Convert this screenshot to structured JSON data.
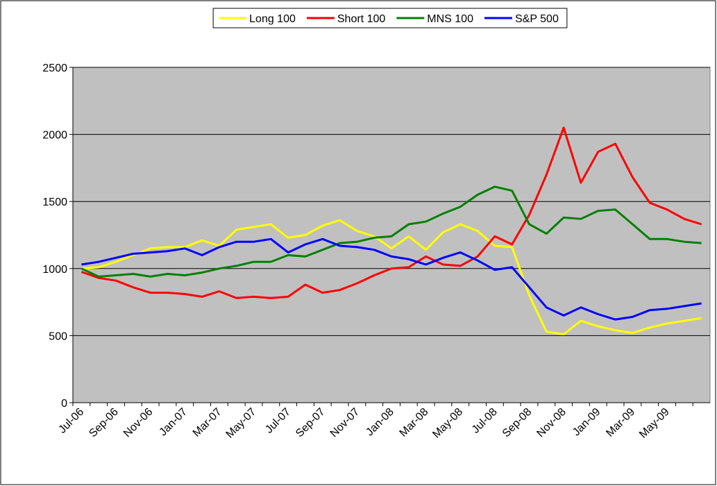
{
  "chart_data": {
    "type": "line",
    "categories": [
      "Jul-06",
      null,
      "Sep-06",
      null,
      "Nov-06",
      null,
      "Jan-07",
      null,
      "Mar-07",
      null,
      "May-07",
      null,
      "Jul-07",
      null,
      "Sep-07",
      null,
      "Nov-07",
      null,
      "Jan-08",
      null,
      "Mar-08",
      null,
      "May-08",
      null,
      "Jul-08",
      null,
      "Sep-08",
      null,
      "Nov-08",
      null,
      "Jan-09",
      null,
      "Mar-09",
      null,
      "May-09",
      null,
      null
    ],
    "series": [
      {
        "name": "Long 100",
        "color": "#ffff00",
        "values": [
          1000,
          1010,
          1050,
          1100,
          1150,
          1160,
          1160,
          1210,
          1170,
          1290,
          1310,
          1330,
          1230,
          1250,
          1320,
          1360,
          1280,
          1240,
          1150,
          1240,
          1140,
          1270,
          1330,
          1280,
          1170,
          1160,
          800,
          530,
          510,
          610,
          570,
          540,
          520,
          560,
          590,
          610,
          630
        ]
      },
      {
        "name": "Short 100",
        "color": "#ff0000",
        "values": [
          975,
          930,
          910,
          860,
          820,
          820,
          810,
          790,
          830,
          780,
          790,
          780,
          790,
          880,
          820,
          840,
          890,
          950,
          1000,
          1010,
          1090,
          1030,
          1020,
          1090,
          1240,
          1180,
          1400,
          1700,
          2050,
          1640,
          1870,
          1930,
          1680,
          1490,
          1440,
          1370,
          1330
        ]
      },
      {
        "name": "MNS 100",
        "color": "#008000",
        "values": [
          1000,
          940,
          950,
          960,
          940,
          960,
          950,
          970,
          1000,
          1020,
          1050,
          1050,
          1100,
          1090,
          1140,
          1190,
          1200,
          1230,
          1240,
          1330,
          1350,
          1410,
          1460,
          1550,
          1610,
          1580,
          1330,
          1260,
          1380,
          1370,
          1430,
          1440,
          1330,
          1220,
          1220,
          1200,
          1190
        ]
      },
      {
        "name": "S&P 500",
        "color": "#0000ff",
        "values": [
          1030,
          1050,
          1080,
          1110,
          1120,
          1130,
          1150,
          1100,
          1160,
          1200,
          1200,
          1220,
          1120,
          1180,
          1220,
          1170,
          1160,
          1140,
          1090,
          1070,
          1030,
          1080,
          1120,
          1060,
          990,
          1010,
          860,
          710,
          650,
          710,
          660,
          620,
          640,
          690,
          700,
          720,
          740
        ]
      }
    ],
    "ylim": [
      0,
      2500
    ],
    "yticks": [
      0,
      500,
      1000,
      1500,
      2000,
      2500
    ],
    "grid": true,
    "legend": "top",
    "plot_background": "#c0c0c0"
  }
}
